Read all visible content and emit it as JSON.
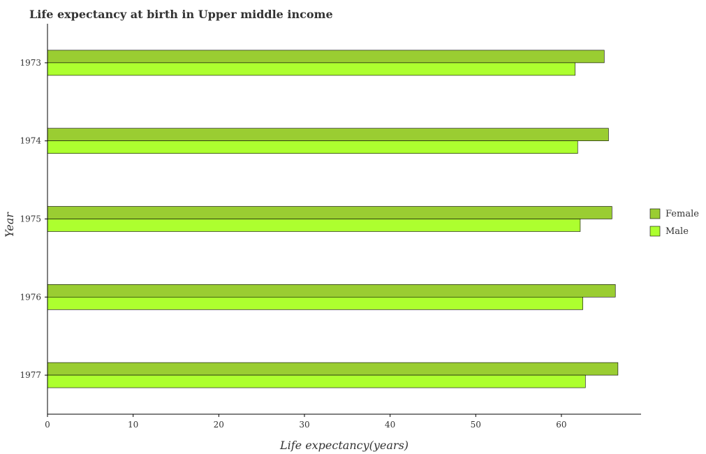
{
  "colors": {
    "female": "#9acd32",
    "male": "#adff2f",
    "bar_edge": "#000000",
    "grid": "#ffffff",
    "plot_bg": "#ffffff"
  },
  "chart_data": {
    "type": "bar",
    "orientation": "horizontal",
    "title": "Life expectancy at birth in Upper middle income",
    "xlabel": "Life expectancy(years)",
    "ylabel": "Year",
    "categories": [
      "1973",
      "1974",
      "1975",
      "1976",
      "1977"
    ],
    "series": [
      {
        "name": "Female",
        "values": [
          65.0,
          65.5,
          65.9,
          66.3,
          66.6
        ]
      },
      {
        "name": "Male",
        "values": [
          61.6,
          61.9,
          62.2,
          62.5,
          62.8
        ]
      }
    ],
    "xlim": [
      0,
      69.3
    ],
    "xticks": [
      "0",
      "10",
      "20",
      "30",
      "40",
      "50",
      "60"
    ],
    "grid": false,
    "legend_position": "right"
  }
}
